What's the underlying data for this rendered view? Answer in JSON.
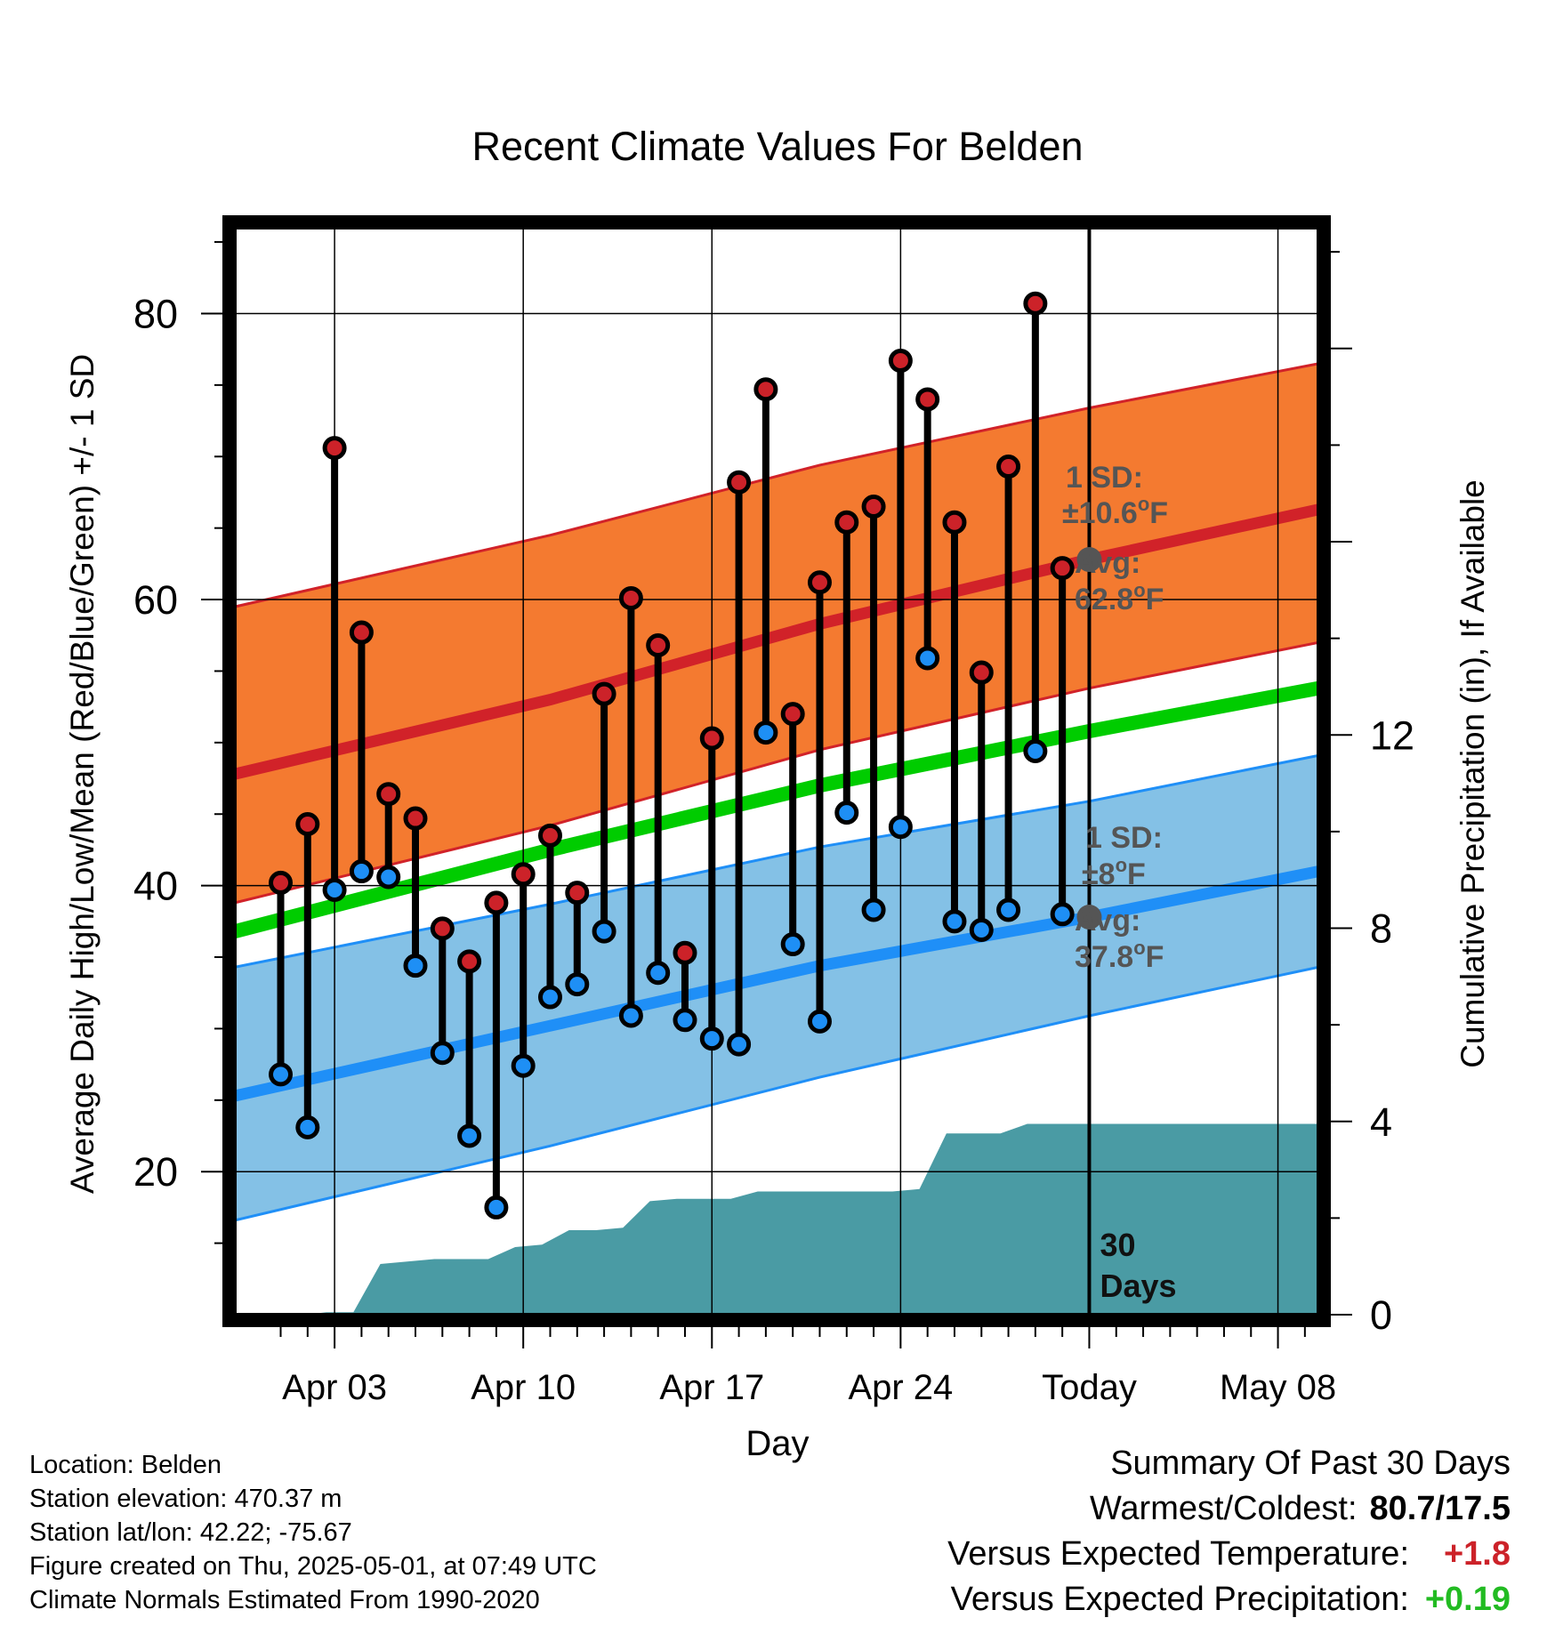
{
  "chart_data": {
    "type": "line",
    "title": "Recent Climate Values For Belden",
    "xlabel": "Day",
    "ylabel_left": "Average Daily High/Low/Mean (Red/Blue/Green) +/- 1 SD",
    "ylabel_right": "Cumulative Precipitation (in), If Available",
    "ylim_left": [
      10,
      86
    ],
    "ylim_right": [
      0,
      22.5
    ],
    "yticks_left": [
      20,
      40,
      60,
      80
    ],
    "yticks_right": [
      0,
      4,
      8,
      12
    ],
    "x_range_days": [
      -1.7,
      38.5
    ],
    "xticks": [
      {
        "day": 2,
        "label": "Apr 03"
      },
      {
        "day": 9,
        "label": "Apr 10"
      },
      {
        "day": 16,
        "label": "Apr 17"
      },
      {
        "day": 23,
        "label": "Apr 24"
      },
      {
        "day": 30,
        "label": "Today"
      },
      {
        "day": 37,
        "label": "May 08"
      }
    ],
    "today_day": 30,
    "today_label": [
      "30",
      "Days"
    ],
    "normals": {
      "high_mean": [
        [
          -1.7,
          47.8
        ],
        [
          10,
          53.0
        ],
        [
          20,
          58.3
        ],
        [
          30,
          62.8
        ],
        [
          38.5,
          66.3
        ]
      ],
      "high_sd_upper": [
        [
          -1.7,
          59.5
        ],
        [
          10,
          64.5
        ],
        [
          20,
          69.4
        ],
        [
          30,
          73.4
        ],
        [
          38.5,
          76.5
        ]
      ],
      "high_sd_lower": [
        [
          -1.7,
          38.8
        ],
        [
          10,
          44.2
        ],
        [
          20,
          49.5
        ],
        [
          30,
          53.8
        ],
        [
          38.5,
          57.0
        ]
      ],
      "mean": [
        [
          -1.7,
          36.8
        ],
        [
          10,
          42.5
        ],
        [
          20,
          47.0
        ],
        [
          30,
          50.8
        ],
        [
          38.5,
          53.8
        ]
      ],
      "low_mean": [
        [
          -1.7,
          25.3
        ],
        [
          10,
          30.2
        ],
        [
          20,
          34.4
        ],
        [
          30,
          37.8
        ],
        [
          38.5,
          41.0
        ]
      ],
      "low_sd_upper": [
        [
          -1.7,
          34.3
        ],
        [
          10,
          38.7
        ],
        [
          20,
          42.7
        ],
        [
          30,
          45.9
        ],
        [
          38.5,
          49.1
        ]
      ],
      "low_sd_lower": [
        [
          -1.7,
          16.6
        ],
        [
          10,
          21.8
        ],
        [
          20,
          26.6
        ],
        [
          30,
          30.9
        ],
        [
          38.5,
          34.3
        ]
      ]
    },
    "series": [
      {
        "name": "High",
        "color": "#cc2229",
        "x": [
          0,
          1,
          2,
          3,
          4,
          5,
          6,
          7,
          8,
          9,
          10,
          11,
          12,
          13,
          14,
          15,
          16,
          17,
          18,
          19,
          20,
          21,
          22,
          23,
          24,
          25,
          26,
          27,
          28,
          29
        ],
        "values": [
          40.2,
          44.3,
          70.6,
          57.7,
          46.4,
          44.7,
          37.0,
          34.7,
          38.8,
          40.8,
          43.5,
          39.5,
          53.4,
          60.1,
          56.8,
          35.3,
          50.3,
          68.2,
          74.7,
          52.0,
          61.2,
          65.4,
          66.5,
          76.7,
          74.0,
          65.4,
          54.9,
          69.3,
          80.7,
          62.2
        ]
      },
      {
        "name": "Low",
        "color": "#1e8ff5",
        "x": [
          0,
          1,
          2,
          3,
          4,
          5,
          6,
          7,
          8,
          9,
          10,
          11,
          12,
          13,
          14,
          15,
          16,
          17,
          18,
          19,
          20,
          21,
          22,
          23,
          24,
          25,
          26,
          27,
          28,
          29
        ],
        "values": [
          26.8,
          23.1,
          39.7,
          41.0,
          40.6,
          34.4,
          28.3,
          22.5,
          17.5,
          27.4,
          32.2,
          33.1,
          36.8,
          30.9,
          33.9,
          30.6,
          29.3,
          28.9,
          50.7,
          35.9,
          30.5,
          45.1,
          38.3,
          44.1,
          55.9,
          37.5,
          36.9,
          38.3,
          49.4,
          38.0
        ]
      },
      {
        "name": "Cumulative Precipitation",
        "x": [
          -0.3,
          0.9,
          1.7,
          2.7,
          3.7,
          4.7,
          5.7,
          6.7,
          7.7,
          8.7,
          9.7,
          10.7,
          11.7,
          12.7,
          13.7,
          14.7,
          15.7,
          16.7,
          17.7,
          18.7,
          19.7,
          20.7,
          21.7,
          22.7,
          23.7,
          24.7,
          25.7,
          26.7,
          27.7,
          28.7,
          30.0,
          38.5
        ],
        "values": [
          0,
          0,
          0.05,
          0.05,
          1.05,
          1.1,
          1.15,
          1.15,
          1.15,
          1.4,
          1.45,
          1.75,
          1.75,
          1.8,
          2.35,
          2.4,
          2.4,
          2.4,
          2.55,
          2.55,
          2.55,
          2.55,
          2.55,
          2.55,
          2.6,
          3.75,
          3.75,
          3.75,
          3.95,
          3.95,
          3.95,
          3.95
        ]
      }
    ],
    "annotations": {
      "high": {
        "sd_title": "1 SD:",
        "sd_value": "±10.6",
        "avg_title": "Avg:",
        "avg_value": "62.8",
        "unit": "F",
        "degree": "o",
        "avg_point": 62.8
      },
      "low": {
        "sd_title": "1 SD:",
        "sd_value": "±8",
        "avg_title": "Avg:",
        "avg_value": "37.8",
        "unit": "F",
        "degree": "o",
        "avg_point": 37.8
      }
    },
    "grid": true,
    "colors": {
      "high_band": "#f47a30",
      "high_line": "#d12229",
      "low_band": "#84c1e6",
      "low_line": "#1f8ff7",
      "mean_line": "#00cc00",
      "precip_fill": "#4a9ba4",
      "annotation_text": "#555555",
      "high_marker": "#cc2229",
      "low_marker": "#1e8ff5"
    }
  },
  "footer": {
    "location": "Location: Belden",
    "elevation": "Station elevation: 470.37 m",
    "latlon": "Station lat/lon: 42.22; -75.67",
    "created": "Figure created on Thu, 2025-05-01, at 07:49 UTC",
    "normals": "Climate Normals Estimated From 1990-2020"
  },
  "summary": {
    "title": "Summary Of Past 30 Days",
    "warm_cold_label": "Warmest/Coldest:",
    "warm_cold_value": "80.7/17.5",
    "temp_label": "Versus Expected Temperature:",
    "temp_value": "+1.8",
    "temp_color": "#cc2229",
    "precip_label": "Versus Expected Precipitation:",
    "precip_value": "+0.19",
    "precip_color": "#22bb22"
  }
}
